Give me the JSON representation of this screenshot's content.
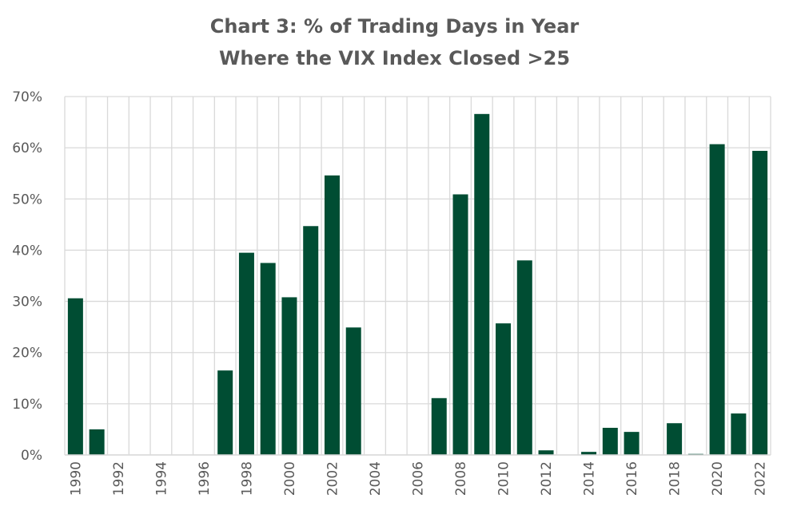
{
  "chart_data": {
    "type": "bar",
    "title_line1": "Chart 3: % of Trading Days in Year",
    "title_line2": "Where the VIX Index Closed >25",
    "xlabel": "",
    "ylabel": "",
    "ylim": [
      0,
      70
    ],
    "yticks": [
      "0%",
      "10%",
      "20%",
      "30%",
      "40%",
      "50%",
      "60%",
      "70%"
    ],
    "grid": true,
    "bar_color": "#004d33",
    "categories": [
      "1990",
      "1991",
      "1992",
      "1993",
      "1994",
      "1995",
      "1996",
      "1997",
      "1998",
      "1999",
      "2000",
      "2001",
      "2002",
      "2003",
      "2004",
      "2005",
      "2006",
      "2007",
      "2008",
      "2009",
      "2010",
      "2011",
      "2012",
      "2013",
      "2014",
      "2015",
      "2016",
      "2017",
      "2018",
      "2019",
      "2020",
      "2021",
      "2022"
    ],
    "xtick_labels": [
      "1990",
      "",
      "1992",
      "",
      "1994",
      "",
      "1996",
      "",
      "1998",
      "",
      "2000",
      "",
      "2002",
      "",
      "2004",
      "",
      "2006",
      "",
      "2008",
      "",
      "2010",
      "",
      "2012",
      "",
      "2014",
      "",
      "2016",
      "",
      "2018",
      "",
      "2020",
      "",
      "2022"
    ],
    "values": [
      30.6,
      5.0,
      0,
      0,
      0,
      0,
      0,
      16.5,
      39.5,
      37.5,
      30.8,
      44.7,
      54.6,
      24.9,
      0,
      0,
      0,
      11.1,
      50.9,
      66.6,
      25.7,
      38.0,
      0.9,
      0,
      0.6,
      5.3,
      4.5,
      0,
      6.2,
      0.2,
      60.7,
      8.1,
      59.4
    ]
  }
}
